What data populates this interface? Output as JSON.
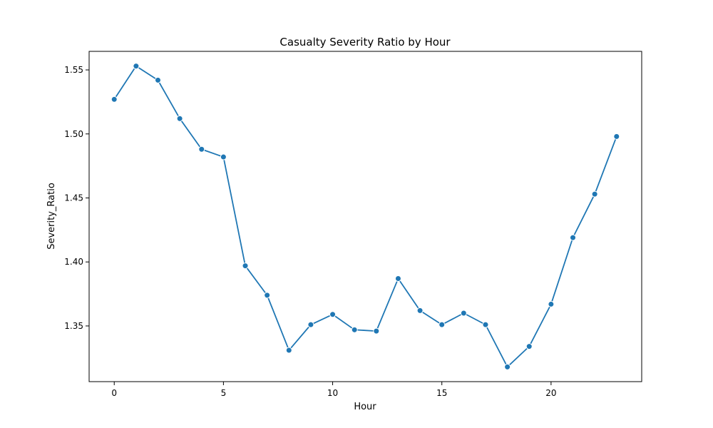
{
  "chart_data": {
    "type": "line",
    "title": "Casualty Severity Ratio by Hour",
    "xlabel": "Hour",
    "ylabel": "Severity_Ratio",
    "xlim": [
      -1.15,
      24.15
    ],
    "ylim": [
      1.3065,
      1.5645
    ],
    "xticks": [
      0,
      5,
      10,
      15,
      20
    ],
    "xtick_labels": [
      "0",
      "5",
      "10",
      "15",
      "20"
    ],
    "yticks": [
      1.35,
      1.4,
      1.45,
      1.5,
      1.55
    ],
    "ytick_labels": [
      "1.35",
      "1.40",
      "1.45",
      "1.50",
      "1.55"
    ],
    "grid": false,
    "color": "#1f77b4",
    "series": [
      {
        "name": "Severity_Ratio",
        "x": [
          0,
          1,
          2,
          3,
          4,
          5,
          6,
          7,
          8,
          9,
          10,
          11,
          12,
          13,
          14,
          15,
          16,
          17,
          18,
          19,
          20,
          21,
          22,
          23
        ],
        "values": [
          1.527,
          1.553,
          1.542,
          1.512,
          1.488,
          1.482,
          1.397,
          1.374,
          1.331,
          1.351,
          1.359,
          1.347,
          1.346,
          1.387,
          1.362,
          1.351,
          1.36,
          1.351,
          1.318,
          1.334,
          1.367,
          1.419,
          1.453,
          1.498
        ]
      }
    ]
  }
}
